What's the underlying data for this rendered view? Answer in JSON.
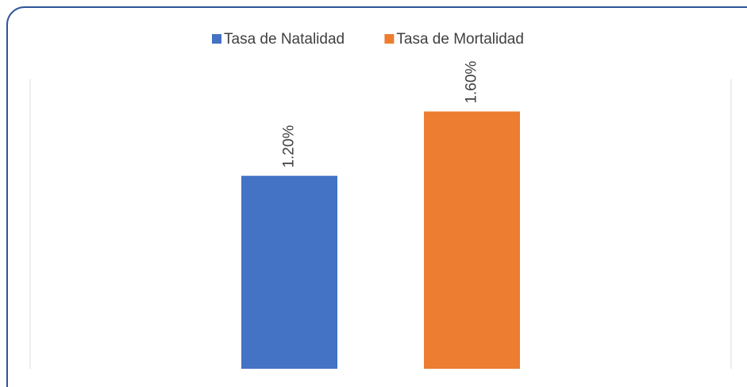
{
  "chart_data": {
    "type": "bar",
    "categories": [
      null
    ],
    "series": [
      {
        "name": "Tasa de Natalidad",
        "color": "#4472c4",
        "values": [
          1.2
        ],
        "value_labels": [
          "1.20%"
        ]
      },
      {
        "name": "Tasa de Mortalidad",
        "color": "#ed7d31",
        "values": [
          1.6
        ],
        "value_labels": [
          "1.60%"
        ]
      }
    ],
    "ylim": [
      0,
      1.8
    ],
    "legend": "top"
  }
}
